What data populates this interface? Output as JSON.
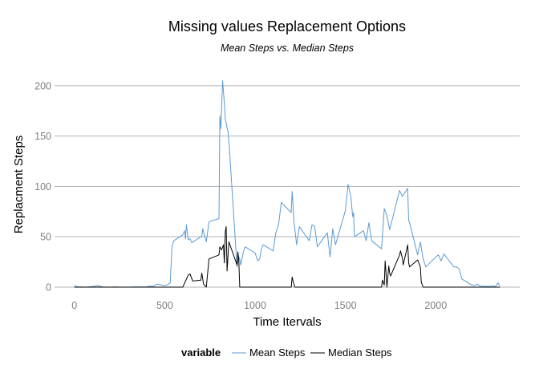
{
  "chart_data": {
    "type": "line",
    "title": "Missing values Replacement Options",
    "subtitle": "Mean Steps vs. Median Steps",
    "xlabel": "Time Itervals",
    "ylabel": "Replacment Steps",
    "xlim": [
      -110,
      2465
    ],
    "ylim": [
      -8,
      215
    ],
    "x_ticks": [
      0,
      500,
      1000,
      1500,
      2000
    ],
    "y_ticks": [
      0,
      50,
      100,
      150,
      200
    ],
    "grid": "horizontal",
    "legend": {
      "title": "variable",
      "placement": "bottom"
    },
    "series": [
      {
        "name": "Mean Steps",
        "color": "#5b9bd5",
        "x": [
          0,
          15,
          30,
          45,
          60,
          100,
          130,
          155,
          200,
          230,
          245,
          300,
          330,
          345,
          400,
          415,
          430,
          445,
          455,
          500,
          510,
          520,
          530,
          540,
          550,
          600,
          610,
          615,
          620,
          630,
          640,
          650,
          700,
          705,
          710,
          720,
          730,
          745,
          800,
          805,
          810,
          815,
          820,
          830,
          835,
          840,
          845,
          850,
          855,
          900,
          910,
          915,
          920,
          930,
          935,
          945,
          1000,
          1015,
          1025,
          1035,
          1045,
          1100,
          1115,
          1130,
          1145,
          1200,
          1205,
          1210,
          1215,
          1230,
          1245,
          1300,
          1315,
          1330,
          1345,
          1400,
          1415,
          1430,
          1445,
          1500,
          1515,
          1530,
          1540,
          1545,
          1550,
          1600,
          1615,
          1630,
          1645,
          1700,
          1715,
          1730,
          1745,
          1800,
          1815,
          1830,
          1845,
          1850,
          1855,
          1900,
          1915,
          1930,
          1945,
          2000,
          2015,
          2030,
          2045,
          2100,
          2115,
          2130,
          2145,
          2200,
          2215,
          2230,
          2245,
          2300,
          2315,
          2330,
          2345,
          2355
        ],
        "values": [
          1.7,
          0.3,
          0.1,
          0.2,
          0,
          0.5,
          1.5,
          0.2,
          0,
          0.3,
          0,
          0,
          0.2,
          0.2,
          0.3,
          1,
          0.7,
          1.5,
          3,
          1.5,
          2,
          3,
          4,
          40,
          46,
          52,
          56,
          48,
          62,
          47,
          48,
          44,
          50,
          50,
          58,
          51,
          45,
          65,
          68,
          170,
          157,
          177,
          205,
          183,
          167,
          163,
          158,
          155,
          145,
          20,
          30,
          28,
          22,
          30,
          35,
          40,
          34,
          26,
          28,
          38,
          42,
          36,
          54,
          62,
          84,
          74,
          95,
          82,
          66,
          42,
          60,
          46,
          62,
          60,
          40,
          54,
          30,
          58,
          42,
          76,
          102,
          90,
          70,
          74,
          50,
          56,
          46,
          64,
          46,
          38,
          78,
          71,
          57,
          96,
          90,
          94,
          98,
          66,
          64,
          32,
          45,
          28,
          20,
          30,
          32,
          26,
          33,
          20,
          20,
          18,
          8,
          2,
          1.5,
          3,
          1,
          0.5,
          1.2,
          0.5,
          4,
          1
        ]
      },
      {
        "name": "Median Steps",
        "color": "#000000",
        "x": [
          0,
          500,
          600,
          630,
          640,
          655,
          700,
          705,
          715,
          730,
          745,
          800,
          805,
          815,
          825,
          830,
          835,
          840,
          845,
          850,
          855,
          900,
          905,
          910,
          915,
          1000,
          1200,
          1205,
          1215,
          1220,
          1300,
          1500,
          1600,
          1700,
          1705,
          1715,
          1720,
          1730,
          1740,
          1745,
          1750,
          1800,
          1805,
          1815,
          1820,
          1830,
          1845,
          1850,
          1855,
          1900,
          1915,
          1920,
          1930,
          2000,
          2355
        ],
        "values": [
          0,
          0,
          0,
          12,
          13,
          6,
          7,
          14,
          3,
          0,
          28,
          32,
          40,
          37,
          42,
          24,
          55,
          60,
          16,
          30,
          45,
          22,
          35,
          27,
          0,
          0,
          0,
          10,
          3,
          0,
          0,
          0,
          0,
          0,
          7,
          2,
          26,
          0,
          21,
          14,
          11,
          32,
          36,
          29,
          22,
          30,
          42,
          24,
          20,
          27,
          20,
          5,
          0,
          0,
          0
        ]
      }
    ]
  }
}
